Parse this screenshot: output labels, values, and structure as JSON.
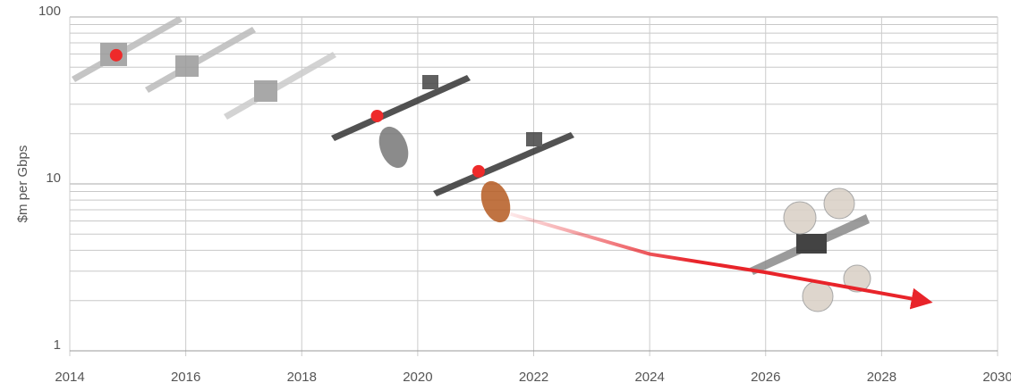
{
  "chart_data": {
    "type": "scatter",
    "y_label": "$m per Gbps",
    "xlim": [
      2014,
      2030
    ],
    "xticks": [
      2014,
      2016,
      2018,
      2020,
      2022,
      2024,
      2026,
      2028,
      2030
    ],
    "ylim": [
      1,
      100
    ],
    "yticks": [
      1,
      10,
      100
    ],
    "log_y": true,
    "grid": true,
    "yminorticks": [
      2,
      3,
      4,
      5,
      6,
      7,
      8,
      9,
      20,
      30,
      40,
      50,
      60,
      70,
      80,
      90
    ],
    "series": [
      {
        "color": "#ee2a2a",
        "style": "markers",
        "x": [
          2014.8,
          2019.3,
          2021.05
        ],
        "values": [
          59,
          25.5,
          11.9
        ]
      },
      {
        "color": "#e8242a",
        "style": "arrow",
        "x": [
          2021.6,
          2024,
          2026,
          2028.7
        ],
        "values": [
          6.6,
          3.8,
          2.95,
          2.0
        ]
      }
    ]
  }
}
